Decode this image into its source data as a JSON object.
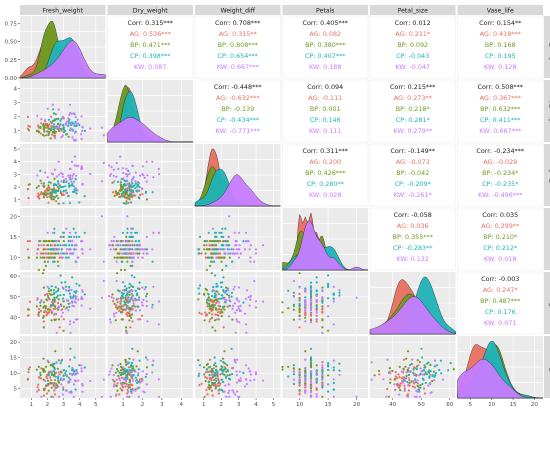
{
  "chart_data": {
    "type": "scatter",
    "title": "",
    "variables": [
      "Fresh_weight",
      "Dry_weight",
      "Weight_diff",
      "Petals",
      "Petal_size",
      "Vase_life"
    ],
    "groups": [
      {
        "name": "AG",
        "color": "#e8705f"
      },
      {
        "name": "BP",
        "color": "#6f9a1f"
      },
      {
        "name": "CP",
        "color": "#1fb3b8"
      },
      {
        "name": "KW",
        "color": "#c77cff"
      }
    ],
    "corr_label": "Corr:",
    "correlations": [
      {
        "pair": [
          "Fresh_weight",
          "Dry_weight"
        ],
        "Corr": "0.315***",
        "AG": "0.536***",
        "BP": "0.471***",
        "CP": "0.398***",
        "KW": "0.087"
      },
      {
        "pair": [
          "Fresh_weight",
          "Weight_diff"
        ],
        "Corr": "0.708***",
        "AG": "0.315**",
        "BP": "0.808***",
        "CP": "0.654***",
        "KW": "0.667***"
      },
      {
        "pair": [
          "Fresh_weight",
          "Petals"
        ],
        "Corr": "0.405***",
        "AG": "0.082",
        "BP": "0.380***",
        "CP": "0.407***",
        "KW": "0.188"
      },
      {
        "pair": [
          "Fresh_weight",
          "Petal_size"
        ],
        "Corr": "0.012",
        "AG": "0.211*",
        "BP": "0.092",
        "CP": "-0.043",
        "KW": "-0.047"
      },
      {
        "pair": [
          "Fresh_weight",
          "Vase_life"
        ],
        "Corr": "0.154**",
        "AG": "0.418***",
        "BP": "0.168",
        "CP": "0.195",
        "KW": "0.128"
      },
      {
        "pair": [
          "Dry_weight",
          "Weight_diff"
        ],
        "Corr": "-0.448***",
        "AG": "-0.632***",
        "BP": "-0.139",
        "CP": "-0.434***",
        "KW": "-0.771***"
      },
      {
        "pair": [
          "Dry_weight",
          "Petals"
        ],
        "Corr": "0.094",
        "AG": "-0.111",
        "BP": "0.001",
        "CP": "0.146",
        "KW": "0.111"
      },
      {
        "pair": [
          "Dry_weight",
          "Petal_size"
        ],
        "Corr": "0.215***",
        "AG": "0.273**",
        "BP": "0.218*",
        "CP": "0.281*",
        "KW": "0.279**"
      },
      {
        "pair": [
          "Dry_weight",
          "Vase_life"
        ],
        "Corr": "0.508***",
        "AG": "0.367***",
        "BP": "0.632***",
        "CP": "0.411***",
        "KW": "0.687***"
      },
      {
        "pair": [
          "Weight_diff",
          "Petals"
        ],
        "Corr": "0.311***",
        "AG": "0.200",
        "BP": "0.426***",
        "CP": "0.280**",
        "KW": "0.028"
      },
      {
        "pair": [
          "Weight_diff",
          "Petal_size"
        ],
        "Corr": "-0.149**",
        "AG": "-0.073",
        "BP": "-0.042",
        "CP": "-0.209*",
        "KW": "-0.261*"
      },
      {
        "pair": [
          "Weight_diff",
          "Vase_life"
        ],
        "Corr": "-0.234***",
        "AG": "-0.029",
        "BP": "-0.234*",
        "CP": "-0.235*",
        "KW": "-0.496***"
      },
      {
        "pair": [
          "Petals",
          "Petal_size"
        ],
        "Corr": "-0.058",
        "AG": "0.036",
        "BP": "0.355***",
        "CP": "-0.283**",
        "KW": "0.132"
      },
      {
        "pair": [
          "Petals",
          "Vase_life"
        ],
        "Corr": "0.035",
        "AG": "0.299**",
        "BP": "0.210*",
        "CP": "0.212*",
        "KW": "0.018"
      },
      {
        "pair": [
          "Petal_size",
          "Vase_life"
        ],
        "Corr": "-0.003",
        "AG": "0.247*",
        "BP": "0.487***",
        "CP": "0.176",
        "KW": "0.071"
      }
    ],
    "axes": {
      "Fresh_weight": {
        "range": [
          0.3,
          5.6
        ],
        "ticks": [
          1,
          2,
          3,
          4,
          5
        ],
        "y_ticks_density": [
          0.0,
          0.25,
          0.5,
          0.75
        ],
        "density_range": [
          0,
          0.85
        ]
      },
      "Dry_weight": {
        "range": [
          0.2,
          4.6
        ],
        "ticks": [
          1,
          2,
          3,
          4
        ]
      },
      "Weight_diff": {
        "range": [
          0.5,
          5.4
        ],
        "ticks": [
          1,
          2,
          3,
          4,
          5
        ]
      },
      "Petals": {
        "range": [
          7,
          22
        ],
        "ticks": [
          10,
          15,
          20
        ]
      },
      "Petal_size": {
        "range": [
          32,
          62
        ],
        "ticks": [
          40,
          50,
          60
        ]
      },
      "Vase_life": {
        "range": [
          2,
          22
        ],
        "ticks": [
          5,
          10,
          15,
          20
        ]
      }
    },
    "means": {
      "Fresh_weight": {
        "AG": 2.0,
        "BP": 2.4,
        "CP": 3.0,
        "KW": 3.4
      },
      "Dry_weight": {
        "AG": 1.2,
        "BP": 1.2,
        "CP": 1.4,
        "KW": 1.3
      },
      "Weight_diff": {
        "AG": 1.5,
        "BP": 1.7,
        "CP": 2.0,
        "KW": 3.0
      },
      "Petals": {
        "AG": 12.0,
        "BP": 12.0,
        "CP": 13.0,
        "KW": 12.5
      },
      "Petal_size": {
        "AG": 44,
        "BP": 46,
        "CP": 52,
        "KW": 47
      },
      "Vase_life": {
        "AG": 8.0,
        "BP": 9.0,
        "CP": 10.0,
        "KW": 8.0
      }
    },
    "sds": {
      "Fresh_weight": {
        "AG": 0.5,
        "BP": 0.55,
        "CP": 0.6,
        "KW": 0.75
      },
      "Dry_weight": {
        "AG": 0.4,
        "BP": 0.4,
        "CP": 0.4,
        "KW": 0.7
      },
      "Weight_diff": {
        "AG": 0.35,
        "BP": 0.45,
        "CP": 0.5,
        "KW": 0.8
      },
      "Petals": {
        "AG": 1.6,
        "BP": 1.8,
        "CP": 2.2,
        "KW": 2.4
      },
      "Petal_size": {
        "AG": 4,
        "BP": 5,
        "CP": 4,
        "KW": 6
      },
      "Vase_life": {
        "AG": 2.5,
        "BP": 3,
        "CP": 3,
        "KW": 3.5
      }
    },
    "discrete_variables": [
      "Petals"
    ],
    "points_per_group": 45
  }
}
